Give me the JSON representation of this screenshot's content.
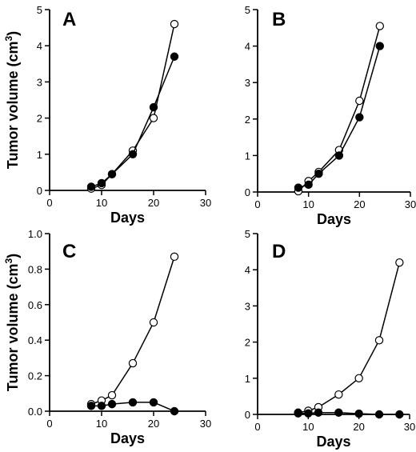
{
  "chart_data": [
    {
      "type": "line",
      "panel": "A",
      "xlabel": "Days",
      "ylabel_main": "Tumor  volume (cm",
      "ylabel_sup": "3",
      "ylabel_end": ")",
      "xlim": [
        0,
        30
      ],
      "ylim": [
        0,
        5
      ],
      "xticks": [
        "0",
        "10",
        "20",
        "30"
      ],
      "yticks": [
        "0",
        "1",
        "2",
        "3",
        "4",
        "5"
      ],
      "series": [
        {
          "marker": "open-circle",
          "x": [
            8,
            10,
            12,
            16,
            20,
            24
          ],
          "y": [
            0.05,
            0.15,
            0.45,
            1.1,
            2.0,
            4.6
          ]
        },
        {
          "marker": "filled-circle",
          "x": [
            8,
            10,
            12,
            16,
            20,
            24
          ],
          "y": [
            0.1,
            0.2,
            0.45,
            1.0,
            2.3,
            3.7
          ]
        }
      ]
    },
    {
      "type": "line",
      "panel": "B",
      "xlabel": "Days",
      "xlim": [
        0,
        30
      ],
      "ylim": [
        0,
        5
      ],
      "xticks": [
        "0",
        "10",
        "20",
        "30"
      ],
      "yticks": [
        "0",
        "1",
        "2",
        "3",
        "4",
        "5"
      ],
      "series": [
        {
          "marker": "open-circle",
          "x": [
            8,
            10,
            12,
            16,
            20,
            24
          ],
          "y": [
            0.02,
            0.3,
            0.55,
            1.15,
            2.5,
            4.55
          ]
        },
        {
          "marker": "filled-circle",
          "x": [
            8,
            10,
            12,
            16,
            20,
            24
          ],
          "y": [
            0.12,
            0.2,
            0.5,
            1.0,
            2.05,
            4.0
          ]
        }
      ]
    },
    {
      "type": "line",
      "panel": "C",
      "xlabel": "Days",
      "ylabel_main": "Tumor  volume (cm",
      "ylabel_sup": "3",
      "ylabel_end": ")",
      "xlim": [
        0,
        30
      ],
      "ylim": [
        0,
        1.0
      ],
      "xticks": [
        "0",
        "10",
        "20",
        "30"
      ],
      "yticks": [
        "0.0",
        "0.2",
        "0.4",
        "0.6",
        "0.8",
        "1.0"
      ],
      "series": [
        {
          "marker": "open-circle",
          "x": [
            8,
            10,
            12,
            16,
            20,
            24
          ],
          "y": [
            0.04,
            0.06,
            0.09,
            0.27,
            0.5,
            0.87
          ]
        },
        {
          "marker": "filled-circle",
          "x": [
            8,
            10,
            12,
            16,
            20,
            24
          ],
          "y": [
            0.03,
            0.03,
            0.04,
            0.05,
            0.05,
            0.0
          ]
        }
      ]
    },
    {
      "type": "line",
      "panel": "D",
      "xlabel": "Days",
      "xlim": [
        0,
        30
      ],
      "ylim": [
        0,
        5
      ],
      "xticks": [
        "0",
        "10",
        "20",
        "30"
      ],
      "yticks": [
        "0",
        "1",
        "2",
        "3",
        "4",
        "5"
      ],
      "series": [
        {
          "marker": "open-circle",
          "x": [
            8,
            10,
            12,
            16,
            20,
            24,
            28
          ],
          "y": [
            0.05,
            0.1,
            0.2,
            0.55,
            1.0,
            2.05,
            4.2
          ]
        },
        {
          "marker": "filled-circle",
          "x": [
            8,
            10,
            12,
            16,
            20,
            24,
            28
          ],
          "y": [
            0.03,
            0.03,
            0.05,
            0.05,
            0.02,
            0.0,
            0.0
          ]
        }
      ]
    }
  ]
}
